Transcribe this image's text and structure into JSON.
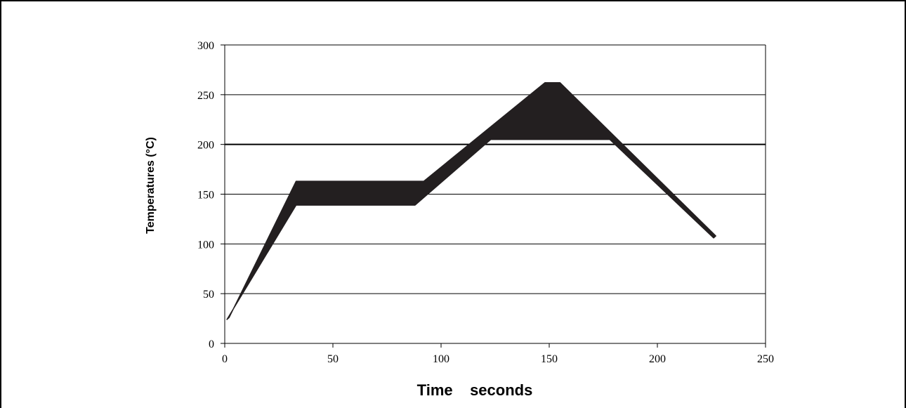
{
  "chart_data": {
    "type": "area",
    "title": "",
    "xlabel": "Time    seconds",
    "ylabel": "Temperatures (°C)",
    "xlim": [
      0,
      250
    ],
    "ylim": [
      0,
      300
    ],
    "xticks": [
      0,
      50,
      100,
      150,
      200,
      250
    ],
    "yticks": [
      0,
      50,
      100,
      150,
      200,
      250,
      300
    ],
    "grid": "horizontal",
    "emphasized_gridline": 200,
    "fill_color": "#231f20",
    "band_upper": [
      {
        "x": 2,
        "y": 26
      },
      {
        "x": 33,
        "y": 163
      },
      {
        "x": 92,
        "y": 163
      },
      {
        "x": 148,
        "y": 262
      },
      {
        "x": 155,
        "y": 262
      },
      {
        "x": 227,
        "y": 108
      }
    ],
    "band_lower": [
      {
        "x": 1,
        "y": 24
      },
      {
        "x": 33,
        "y": 139
      },
      {
        "x": 88,
        "y": 139
      },
      {
        "x": 123,
        "y": 205
      },
      {
        "x": 178,
        "y": 205
      },
      {
        "x": 226,
        "y": 106
      }
    ]
  }
}
